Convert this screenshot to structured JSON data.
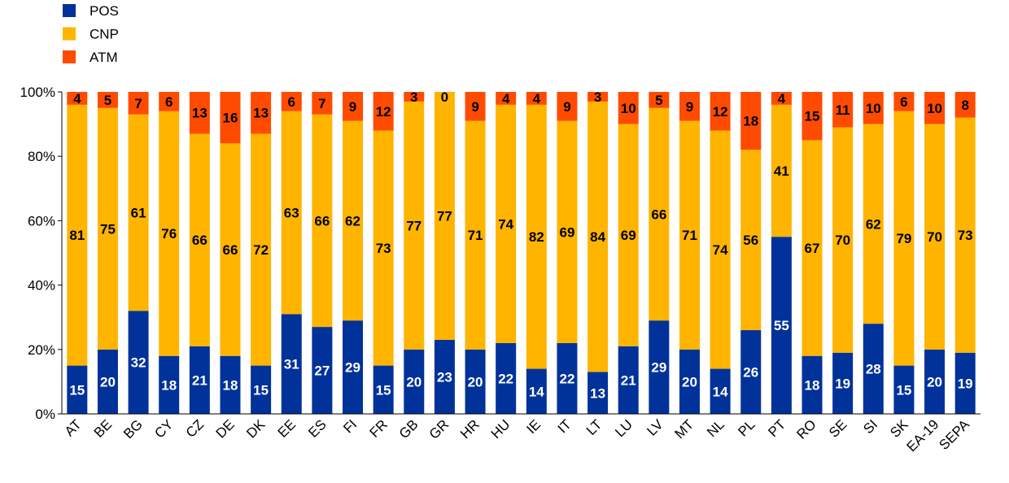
{
  "chart_data": {
    "type": "bar",
    "stacked": true,
    "title": "",
    "xlabel": "",
    "ylabel": "",
    "ylim": [
      0,
      100
    ],
    "yticks": [
      "0%",
      "20%",
      "40%",
      "60%",
      "80%",
      "100%"
    ],
    "legend_position": "top-left",
    "categories": [
      "AT",
      "BE",
      "BG",
      "CY",
      "CZ",
      "DE",
      "DK",
      "EE",
      "ES",
      "FI",
      "FR",
      "GB",
      "GR",
      "HR",
      "HU",
      "IE",
      "IT",
      "LT",
      "LU",
      "LV",
      "MT",
      "NL",
      "PL",
      "PT",
      "RO",
      "SE",
      "SI",
      "SK",
      "EA-19",
      "SEPA"
    ],
    "series": [
      {
        "name": "POS",
        "color": "#003299",
        "values": [
          15,
          20,
          32,
          18,
          21,
          18,
          15,
          31,
          27,
          29,
          15,
          20,
          23,
          20,
          22,
          14,
          22,
          13,
          21,
          29,
          20,
          14,
          26,
          55,
          18,
          19,
          28,
          15,
          20,
          19
        ]
      },
      {
        "name": "CNP",
        "color": "#FFB400",
        "values": [
          81,
          75,
          61,
          76,
          66,
          66,
          72,
          63,
          66,
          62,
          73,
          77,
          77,
          71,
          74,
          82,
          69,
          84,
          69,
          66,
          71,
          74,
          56,
          41,
          67,
          70,
          62,
          79,
          70,
          73
        ]
      },
      {
        "name": "ATM",
        "color": "#FF4B00",
        "values": [
          4,
          5,
          7,
          6,
          13,
          16,
          13,
          6,
          7,
          9,
          12,
          3,
          0,
          9,
          4,
          4,
          9,
          3,
          10,
          5,
          9,
          12,
          18,
          4,
          15,
          11,
          10,
          6,
          10,
          8
        ]
      }
    ]
  }
}
